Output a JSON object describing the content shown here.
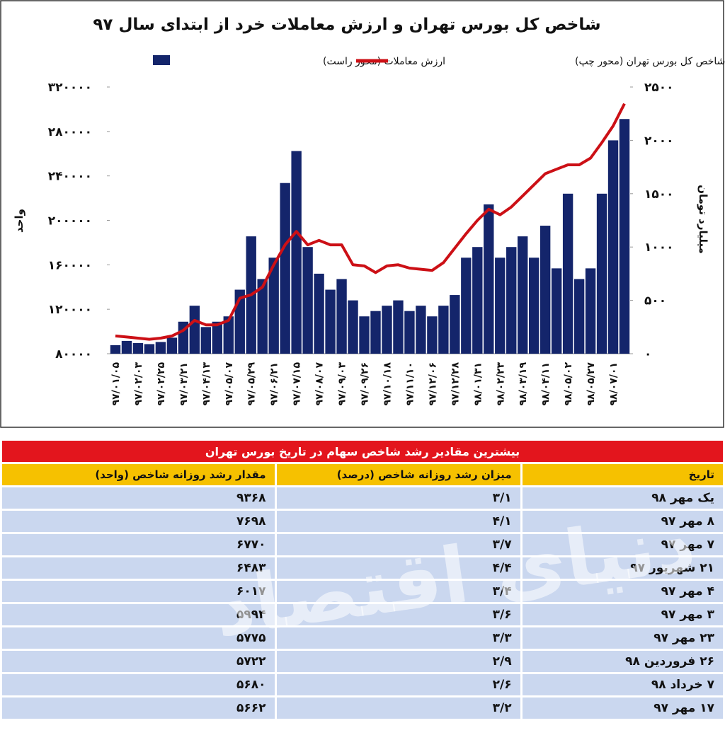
{
  "chart_data": {
    "type": "combo",
    "title": "شاخص کل بورس تهران و ارزش معاملات خرد از ابتدای سال ۹۷",
    "ylabel": "واحد",
    "y2label": "میلیارد تومان",
    "categories": [
      "۹۷/۰۱/۰۵",
      null,
      "۹۷/۰۲/۰۳",
      null,
      "۹۷/۰۲/۲۵",
      null,
      "۹۷/۰۳/۲۱",
      null,
      "۹۷/۰۴/۱۳",
      null,
      "۹۷/۰۵/۰۷",
      null,
      "۹۷/۰۵/۲۹",
      null,
      "۹۷/۰۶/۲۱",
      null,
      "۹۷/۰۷/۱۵",
      null,
      "۹۷/۰۸/۰۷",
      null,
      "۹۷/۰۹/۰۳",
      null,
      "۹۷/۰۹/۲۶",
      null,
      "۹۷/۱۰/۱۸",
      null,
      "۹۷/۱۱/۱۰",
      null,
      "۹۷/۱۲/۰۶",
      null,
      "۹۷/۱۲/۲۸",
      null,
      "۹۸/۰۱/۳۱",
      null,
      "۹۸/۰۲/۲۳",
      null,
      "۹۸/۰۳/۱۹",
      null,
      "۹۸/۰۴/۱۱",
      null,
      "۹۸/۰۵/۰۲",
      null,
      "۹۸/۰۵/۲۷",
      null,
      "۹۸/۰۷/۰۱",
      null
    ],
    "series": [
      {
        "name": "ارزش معاملات (محور راست)",
        "kind": "bar",
        "axis": "y2",
        "color": "#14256b",
        "values": [
          80,
          120,
          100,
          90,
          110,
          150,
          300,
          450,
          250,
          300,
          350,
          600,
          1100,
          700,
          900,
          1600,
          1900,
          1000,
          750,
          600,
          700,
          500,
          350,
          400,
          450,
          500,
          400,
          450,
          350,
          450,
          550,
          900,
          1000,
          1400,
          900,
          1000,
          1100,
          900,
          1200,
          800,
          1500,
          700,
          800,
          1500,
          2000,
          2200
        ]
      },
      {
        "name": "شاخص کل بورس تهران (محور چپ)",
        "kind": "line",
        "color": "#cc1016",
        "values": [
          96000,
          95000,
          94000,
          93000,
          94000,
          96000,
          101000,
          110000,
          106000,
          106000,
          110000,
          130000,
          133000,
          140000,
          160000,
          178000,
          190000,
          178000,
          182000,
          178000,
          178000,
          160000,
          159000,
          153000,
          159000,
          160000,
          157000,
          156000,
          155000,
          162000,
          175000,
          188000,
          200000,
          210000,
          205000,
          212000,
          222000,
          232000,
          242000,
          246000,
          250000,
          250000,
          256000,
          270000,
          285000,
          305000
        ]
      }
    ],
    "ylim": [
      80000,
      320000
    ],
    "yticks": [
      {
        "value": 80000,
        "label": "۸۰۰۰۰"
      },
      {
        "value": 120000,
        "label": "۱۲۰۰۰۰"
      },
      {
        "value": 160000,
        "label": "۱۶۰۰۰۰"
      },
      {
        "value": 200000,
        "label": "۲۰۰۰۰۰"
      },
      {
        "value": 240000,
        "label": "۲۴۰۰۰۰"
      },
      {
        "value": 280000,
        "label": "۲۸۰۰۰۰"
      },
      {
        "value": 320000,
        "label": "۳۲۰۰۰۰"
      }
    ],
    "y2lim": [
      0,
      2500
    ],
    "y2ticks": [
      {
        "value": 0,
        "label": "۰"
      },
      {
        "value": 500,
        "label": "۵۰۰"
      },
      {
        "value": 1000,
        "label": "۱۰۰۰"
      },
      {
        "value": 1500,
        "label": "۱۵۰۰"
      },
      {
        "value": 2000,
        "label": "۲۰۰۰"
      },
      {
        "value": 2500,
        "label": "۲۵۰۰"
      }
    ],
    "grid": false,
    "legend": "top"
  },
  "watermark": "دنیای اقتصاد",
  "table": {
    "title": "بیشترین مقادیر رشد شاخص سهام در تاریخ بورس تهران",
    "header": [
      "تاریخ",
      "میزان رشد روزانه شاخص (درصد)",
      "مقدار رشد روزانه شاخص (واحد)"
    ],
    "rows": [
      [
        "یک مهر ۹۸",
        "۳/۱",
        "۹۳۶۸"
      ],
      [
        "۸ مهر ۹۷",
        "۴/۱",
        "۷۶۹۸"
      ],
      [
        "۷ مهر ۹۷",
        "۳/۷",
        "۶۷۷۰"
      ],
      [
        "۲۱ شهریور ۹۷",
        "۴/۴",
        "۶۴۸۳"
      ],
      [
        "۴ مهر ۹۷",
        "۳/۴",
        "۶۰۱۷"
      ],
      [
        "۳ مهر ۹۷",
        "۳/۶",
        "۵۹۹۴"
      ],
      [
        "۲۳ مهر ۹۷",
        "۳/۳",
        "۵۷۷۵"
      ],
      [
        "۲۶ فروردین ۹۸",
        "۲/۹",
        "۵۷۲۲"
      ],
      [
        "۷ خرداد ۹۸",
        "۲/۶",
        "۵۶۸۰"
      ],
      [
        "۱۷ مهر ۹۷",
        "۳/۲",
        "۵۶۶۲"
      ]
    ]
  }
}
